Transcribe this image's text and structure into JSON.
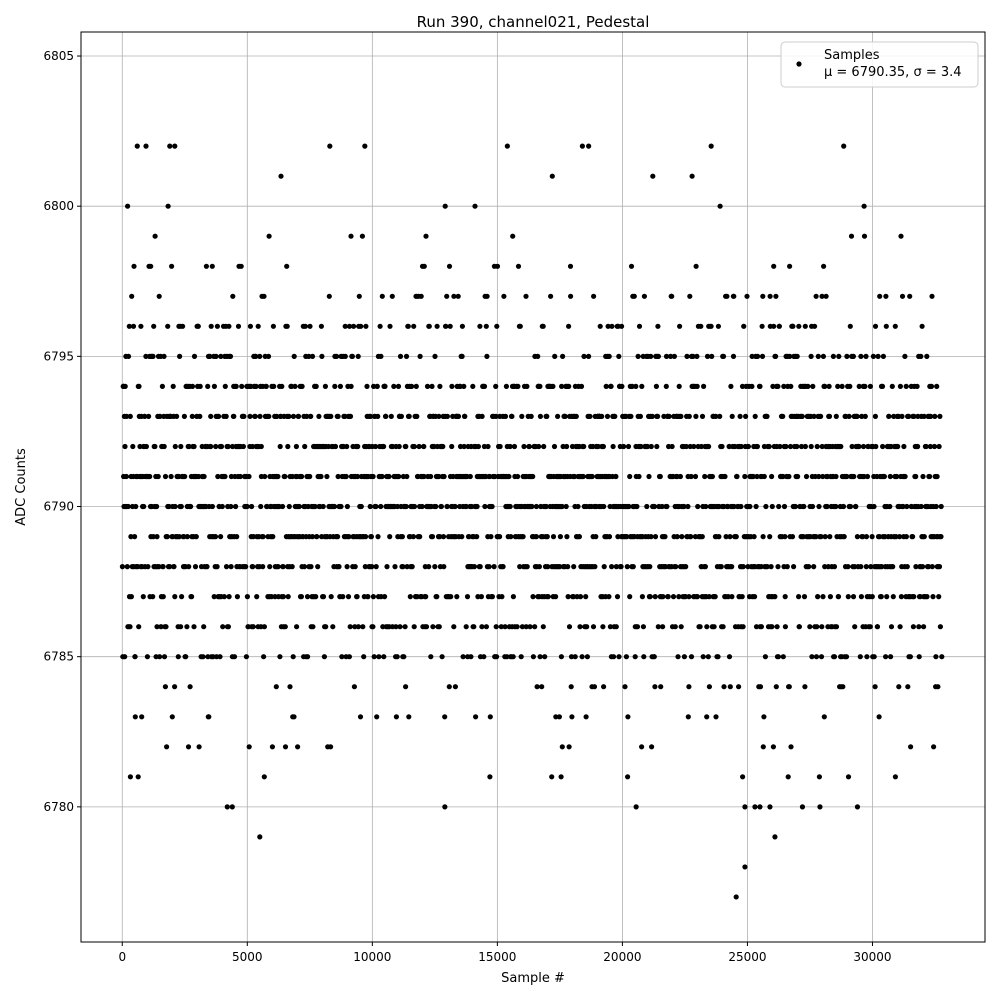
{
  "chart_data": {
    "type": "scatter",
    "title": "Run 390, channel021, Pedestal",
    "xlabel": "Sample #",
    "ylabel": "ADC Counts",
    "xlim": [
      -1650,
      34500
    ],
    "ylim": [
      6775.5,
      6805.8
    ],
    "x_ticks": [
      0,
      5000,
      10000,
      15000,
      20000,
      25000,
      30000
    ],
    "y_ticks": [
      6780,
      6785,
      6790,
      6795,
      6800,
      6805
    ],
    "grid": true,
    "legend_position": "top-right",
    "marker_color": "#000000",
    "series": [
      {
        "name": "Samples",
        "stats": "μ = 6790.35, σ = 3.4",
        "n_samples": 32768,
        "mean": 6790.35,
        "sigma": 3.4
      }
    ],
    "notable_points": [
      {
        "x": 5500,
        "y": 6779
      },
      {
        "x": 12900,
        "y": 6780
      },
      {
        "x": 4200,
        "y": 6780
      },
      {
        "x": 4400,
        "y": 6780
      },
      {
        "x": 20550,
        "y": 6780
      },
      {
        "x": 24550,
        "y": 6777
      },
      {
        "x": 24900,
        "y": 6778
      },
      {
        "x": 24900,
        "y": 6780
      },
      {
        "x": 25300,
        "y": 6780
      },
      {
        "x": 25500,
        "y": 6780
      },
      {
        "x": 25900,
        "y": 6780
      },
      {
        "x": 26100,
        "y": 6779
      },
      {
        "x": 27200,
        "y": 6780
      },
      {
        "x": 27900,
        "y": 6780
      },
      {
        "x": 29400,
        "y": 6780
      },
      {
        "x": 600,
        "y": 6802
      },
      {
        "x": 950,
        "y": 6802
      },
      {
        "x": 1900,
        "y": 6802
      },
      {
        "x": 2100,
        "y": 6802
      },
      {
        "x": 8300,
        "y": 6802
      },
      {
        "x": 9700,
        "y": 6802
      },
      {
        "x": 15400,
        "y": 6802
      },
      {
        "x": 18400,
        "y": 6802
      },
      {
        "x": 18650,
        "y": 6802
      },
      {
        "x": 23550,
        "y": 6802
      },
      {
        "x": 28850,
        "y": 6802
      }
    ]
  }
}
